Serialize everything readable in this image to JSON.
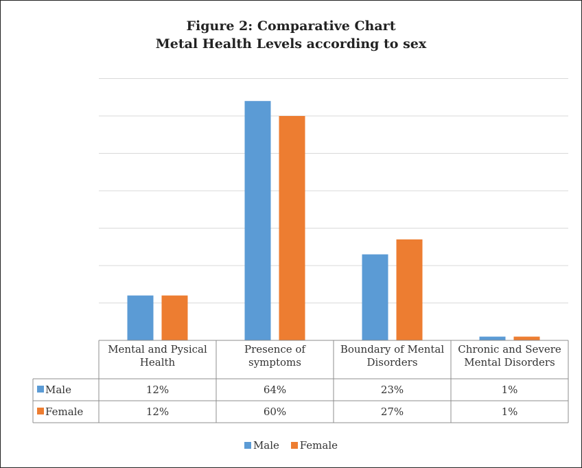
{
  "chart_data": {
    "type": "bar",
    "title": "Figure 2: Comparative Chart",
    "subtitle": "Metal Health Levels according to sex",
    "categories": [
      [
        "Mental and Pysical",
        "Health"
      ],
      [
        "Presence of",
        "symptoms"
      ],
      [
        "Boundary of Mental",
        "Disorders"
      ],
      [
        "Chronic and Severe",
        "Mental Disorders"
      ]
    ],
    "series": [
      {
        "name": "Male",
        "color": "#5b9bd5",
        "values": [
          12,
          64,
          23,
          1
        ],
        "labels": [
          "12%",
          "64%",
          "23%",
          "1%"
        ]
      },
      {
        "name": "Female",
        "color": "#ed7d31",
        "values": [
          12,
          60,
          27,
          1
        ],
        "labels": [
          "12%",
          "60%",
          "27%",
          "1%"
        ]
      }
    ],
    "ylim": [
      0,
      70
    ],
    "grid": true,
    "legend": "bottom"
  }
}
